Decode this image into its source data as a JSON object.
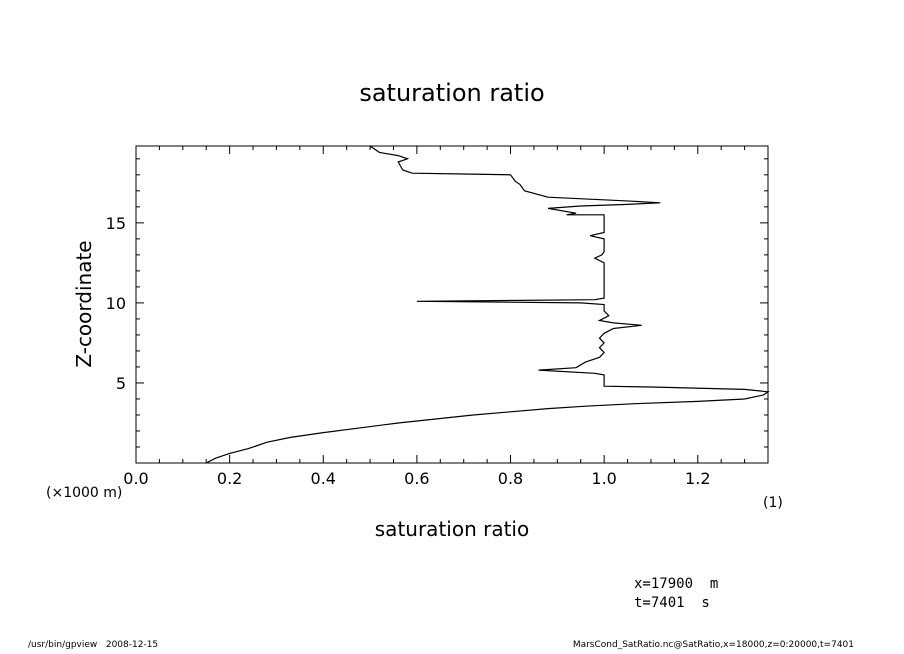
{
  "chart_data": {
    "type": "line",
    "title": "saturation ratio",
    "xlabel": "saturation ratio",
    "ylabel": "Z-coordinate",
    "x_unit_note": "(1)",
    "y_unit_note": "(×1000 m)",
    "xlim": [
      0.0,
      1.35
    ],
    "ylim": [
      0,
      19.8
    ],
    "x_ticks": [
      "0.0",
      "0.2",
      "0.4",
      "0.6",
      "0.8",
      "1.0",
      "1.2"
    ],
    "y_ticks": [
      "5",
      "10",
      "15"
    ],
    "x_tick_values": [
      0,
      0.2,
      0.4,
      0.6,
      0.8,
      1.0,
      1.2
    ],
    "y_tick_values": [
      5,
      10,
      15
    ],
    "grid": false,
    "series": [
      {
        "points": [
          [
            0.15,
            0.0
          ],
          [
            0.17,
            0.3
          ],
          [
            0.2,
            0.6
          ],
          [
            0.24,
            0.9
          ],
          [
            0.28,
            1.3
          ],
          [
            0.33,
            1.6
          ],
          [
            0.4,
            1.9
          ],
          [
            0.48,
            2.2
          ],
          [
            0.56,
            2.5
          ],
          [
            0.64,
            2.75
          ],
          [
            0.72,
            3.0
          ],
          [
            0.8,
            3.2
          ],
          [
            0.88,
            3.4
          ],
          [
            0.96,
            3.55
          ],
          [
            1.06,
            3.7
          ],
          [
            1.2,
            3.85
          ],
          [
            1.3,
            4.0
          ],
          [
            1.34,
            4.25
          ],
          [
            1.35,
            4.45
          ],
          [
            1.3,
            4.6
          ],
          [
            1.1,
            4.75
          ],
          [
            1.0,
            4.8
          ],
          [
            1.0,
            5.5
          ],
          [
            0.98,
            5.6
          ],
          [
            0.86,
            5.8
          ],
          [
            0.94,
            5.95
          ],
          [
            0.96,
            6.3
          ],
          [
            0.99,
            6.6
          ],
          [
            1.0,
            6.9
          ],
          [
            0.99,
            7.2
          ],
          [
            1.0,
            7.5
          ],
          [
            0.99,
            7.8
          ],
          [
            1.0,
            8.1
          ],
          [
            1.02,
            8.4
          ],
          [
            1.08,
            8.6
          ],
          [
            1.02,
            8.75
          ],
          [
            0.99,
            8.9
          ],
          [
            1.01,
            9.2
          ],
          [
            1.0,
            9.5
          ],
          [
            1.0,
            9.9
          ],
          [
            0.95,
            10.0
          ],
          [
            0.6,
            10.1
          ],
          [
            0.98,
            10.2
          ],
          [
            1.0,
            10.3
          ],
          [
            1.0,
            12.5
          ],
          [
            0.98,
            12.8
          ],
          [
            0.995,
            13.0
          ],
          [
            1.0,
            13.2
          ],
          [
            1.0,
            14.0
          ],
          [
            0.97,
            14.2
          ],
          [
            1.0,
            14.4
          ],
          [
            1.0,
            15.5
          ],
          [
            0.92,
            15.5
          ],
          [
            0.94,
            15.6
          ],
          [
            0.88,
            15.9
          ],
          [
            0.95,
            16.05
          ],
          [
            1.05,
            16.15
          ],
          [
            1.12,
            16.25
          ],
          [
            1.06,
            16.35
          ],
          [
            0.88,
            16.6
          ],
          [
            0.83,
            17.0
          ],
          [
            0.82,
            17.4
          ],
          [
            0.81,
            17.6
          ],
          [
            0.8,
            18.0
          ],
          [
            0.7,
            18.05
          ],
          [
            0.59,
            18.1
          ],
          [
            0.57,
            18.3
          ],
          [
            0.56,
            18.8
          ],
          [
            0.58,
            19.0
          ],
          [
            0.56,
            19.2
          ],
          [
            0.52,
            19.4
          ],
          [
            0.5,
            19.8
          ]
        ]
      }
    ]
  },
  "info": {
    "x_position": "x=17900  m",
    "time": "t=7401  s"
  },
  "footer": {
    "program": "/usr/bin/gpview   2008-12-15",
    "source": "MarsCond_SatRatio.nc@SatRatio,x=18000,z=0:20000,t=7401"
  }
}
